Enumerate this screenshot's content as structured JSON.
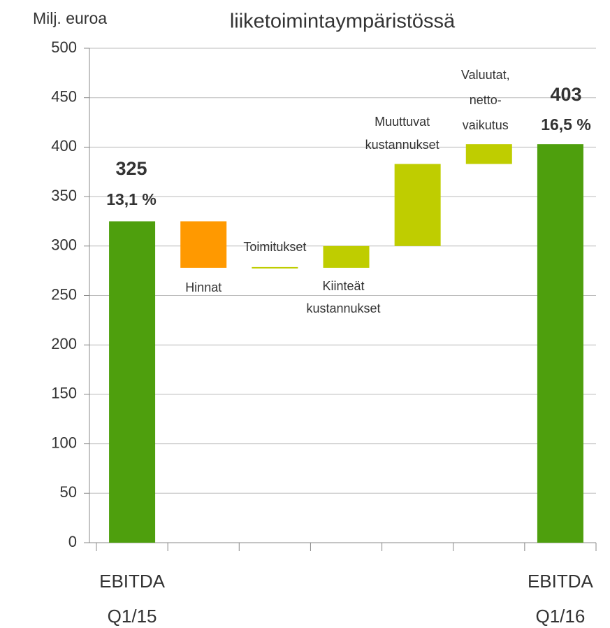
{
  "chart_data": {
    "type": "waterfall",
    "title": "liiketoimintaympäristössä",
    "y_axis_label": "Milj. euroa",
    "categories": [
      "EBITDA\nQ1/15",
      "Hinnat",
      "Toimitukset",
      "Kiinteät\nkustannukset",
      "Muuttuvat\nkustannukset",
      "Valuutat,\nnetto-\nvaikutus",
      "EBITDA\nQ1/16"
    ],
    "values": [
      325,
      -47,
      0,
      22,
      83,
      20,
      403
    ],
    "totals": [
      0,
      6
    ],
    "annotations": [
      "13,1 %",
      "16,5 %"
    ],
    "total_color": "#4e9f0d",
    "increase_color": "#bfcd00",
    "decrease_color": "#ff9900",
    "ylim": [
      0,
      500
    ],
    "yticks": [
      0,
      50,
      100,
      150,
      200,
      250,
      300,
      350,
      400,
      450,
      500
    ],
    "grid": true
  }
}
